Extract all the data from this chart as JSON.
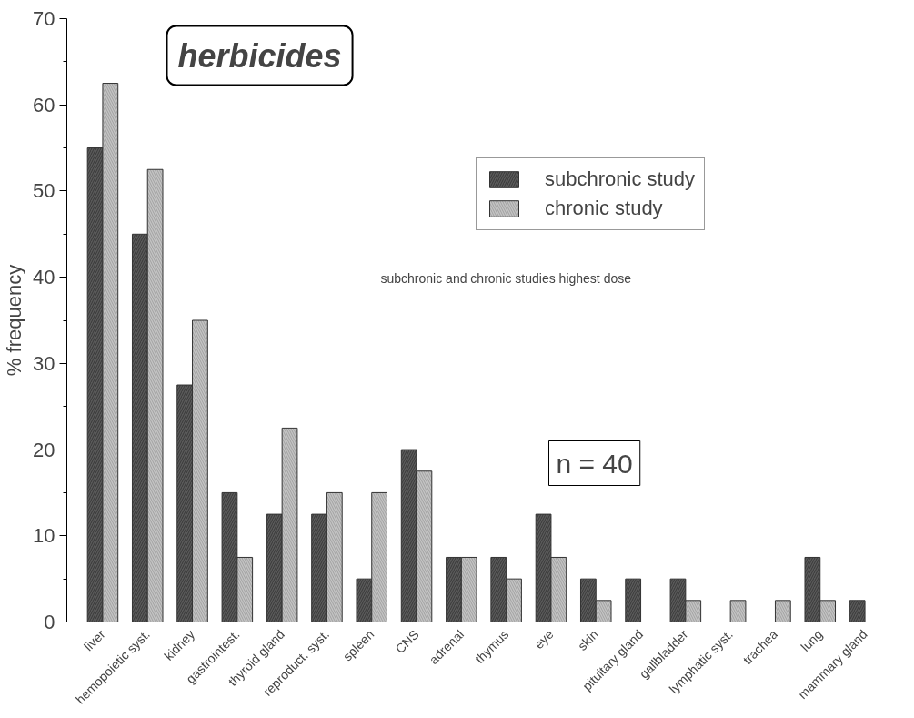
{
  "chart_data": {
    "type": "bar",
    "title": "herbicides",
    "ylabel": "% frequency",
    "categories": [
      "liver",
      "hemopoietic syst.",
      "kidney",
      "gastrointest.",
      "thyroid gland",
      "reproduct. syst.",
      "spleen",
      "CNS",
      "adrenal",
      "thymus",
      "eye",
      "skin",
      "pituitary gland",
      "gallbladder",
      "lymphatic syst.",
      "trachea",
      "lung",
      "mammary gland"
    ],
    "series": [
      {
        "name": "subchronic study",
        "color": "#5a5a5a",
        "values": [
          55,
          45,
          27.5,
          15,
          12.5,
          12.5,
          5,
          20,
          7.5,
          7.5,
          12.5,
          5,
          5,
          5,
          0,
          0,
          7.5,
          2.5
        ]
      },
      {
        "name": "chronic study",
        "color": "#c4c4c4",
        "values": [
          62.5,
          52.5,
          35,
          7.5,
          22.5,
          15,
          15,
          17.5,
          7.5,
          5,
          7.5,
          2.5,
          0,
          2.5,
          2.5,
          2.5,
          2.5,
          0
        ]
      }
    ],
    "ylim": [
      0,
      70
    ],
    "yticks": [
      0,
      10,
      20,
      30,
      40,
      50,
      60,
      70
    ],
    "annotations": [
      "subchronic and chronic studies highest dose",
      "n = 40"
    ],
    "legend": "top right",
    "grid": false
  }
}
